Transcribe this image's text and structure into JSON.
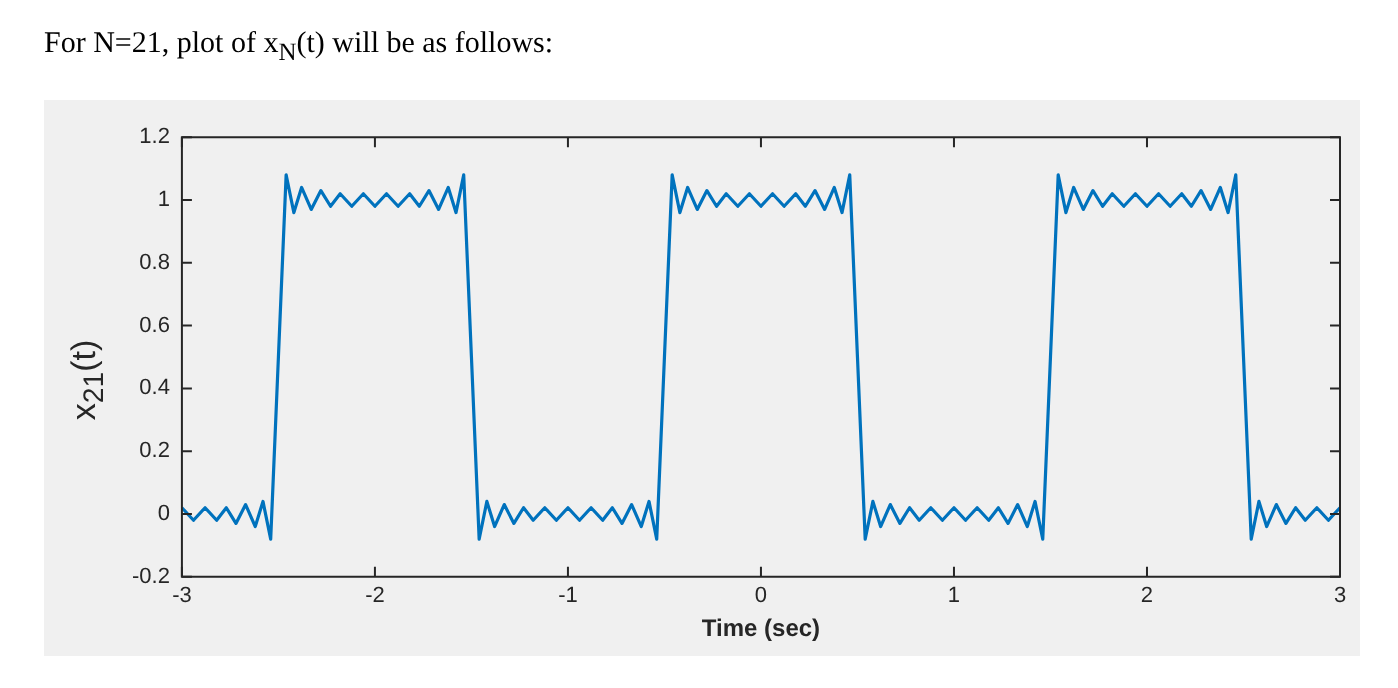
{
  "chart_data": {
    "type": "line",
    "title": "For N=21, plot of x$_{N}$(t) will be as follows:",
    "xlabel": "Time (sec)",
    "ylabel": "x$_{21}$(t)",
    "xlim": [
      -3,
      3
    ],
    "xticks": [
      -3,
      -2,
      -1,
      0,
      1,
      2,
      3
    ],
    "ylim": [
      -0.2,
      1.2
    ],
    "yticks": [
      -0.2,
      0,
      0.2,
      0.4,
      0.6,
      0.8,
      1,
      1.2
    ],
    "marker": "none",
    "line_style": "solid",
    "legend": false,
    "series": [
      {
        "color": "#0072bd",
        "x": [
          -3,
          -2.94,
          -2.88,
          -2.82,
          -2.77,
          -2.72,
          -2.67,
          -2.62,
          -2.58,
          -2.54,
          -2.5,
          -2.46,
          -2.42,
          -2.38,
          -2.33,
          -2.28,
          -2.23,
          -2.18,
          -2.12,
          -2.06,
          -2,
          -1.94,
          -1.88,
          -1.82,
          -1.77,
          -1.72,
          -1.67,
          -1.62,
          -1.58,
          -1.54,
          -1.5,
          -1.46,
          -1.42,
          -1.38,
          -1.33,
          -1.28,
          -1.23,
          -1.18,
          -1.12,
          -1.06,
          -1,
          -0.94,
          -0.88,
          -0.82,
          -0.77,
          -0.72,
          -0.67,
          -0.62,
          -0.58,
          -0.54,
          -0.5,
          -0.46,
          -0.42,
          -0.38,
          -0.33,
          -0.28,
          -0.23,
          -0.18,
          -0.12,
          -0.06,
          0,
          0.06,
          0.12,
          0.18,
          0.23,
          0.28,
          0.33,
          0.38,
          0.42,
          0.46,
          0.5,
          0.54,
          0.58,
          0.62,
          0.67,
          0.72,
          0.77,
          0.82,
          0.88,
          0.94,
          1,
          1.06,
          1.12,
          1.18,
          1.23,
          1.28,
          1.33,
          1.38,
          1.42,
          1.46,
          1.5,
          1.54,
          1.58,
          1.62,
          1.67,
          1.72,
          1.77,
          1.82,
          1.88,
          1.94,
          2,
          2.06,
          2.12,
          2.18,
          2.23,
          2.28,
          2.33,
          2.38,
          2.42,
          2.46,
          2.5,
          2.54,
          2.58,
          2.62,
          2.67,
          2.72,
          2.77,
          2.82,
          2.88,
          2.94,
          3
        ],
        "values": [
          0.02,
          -0.02,
          0.02,
          -0.02,
          0.02,
          -0.03,
          0.03,
          -0.04,
          0.04,
          -0.08,
          0.5,
          1.08,
          0.96,
          1.04,
          0.97,
          1.03,
          0.98,
          1.02,
          0.98,
          1.02,
          0.98,
          1.02,
          0.98,
          1.02,
          0.98,
          1.03,
          0.97,
          1.04,
          0.96,
          1.08,
          0.5,
          -0.08,
          0.04,
          -0.04,
          0.03,
          -0.03,
          0.02,
          -0.02,
          0.02,
          -0.02,
          0.02,
          -0.02,
          0.02,
          -0.02,
          0.02,
          -0.03,
          0.03,
          -0.04,
          0.04,
          -0.08,
          0.5,
          1.08,
          0.96,
          1.04,
          0.97,
          1.03,
          0.98,
          1.02,
          0.98,
          1.02,
          0.98,
          1.02,
          0.98,
          1.02,
          0.98,
          1.03,
          0.97,
          1.04,
          0.96,
          1.08,
          0.5,
          -0.08,
          0.04,
          -0.04,
          0.03,
          -0.03,
          0.02,
          -0.02,
          0.02,
          -0.02,
          0.02,
          -0.02,
          0.02,
          -0.02,
          0.02,
          -0.03,
          0.03,
          -0.04,
          0.04,
          -0.08,
          0.5,
          1.08,
          0.96,
          1.04,
          0.97,
          1.03,
          0.98,
          1.02,
          0.98,
          1.02,
          0.98,
          1.02,
          0.98,
          1.02,
          0.98,
          1.03,
          0.97,
          1.04,
          0.96,
          1.08,
          0.5,
          -0.08,
          0.04,
          -0.04,
          0.03,
          -0.03,
          0.02,
          -0.02,
          0.02,
          -0.02,
          0.02
        ]
      }
    ]
  }
}
